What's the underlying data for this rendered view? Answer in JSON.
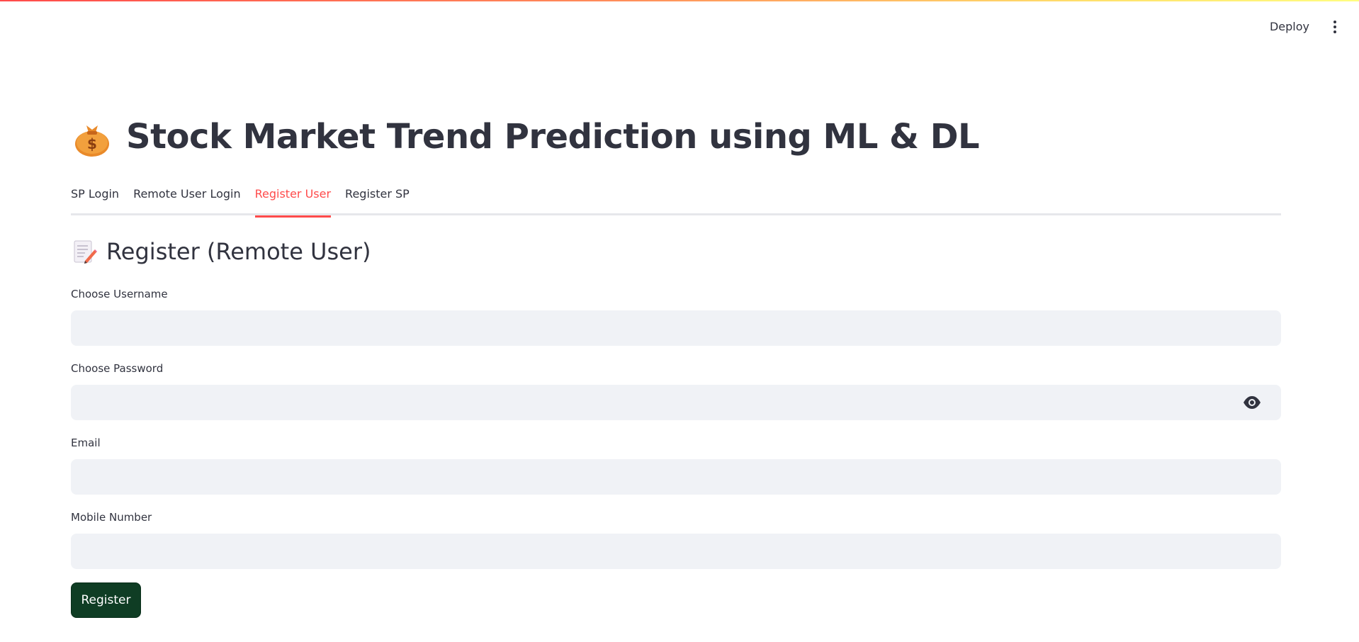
{
  "header": {
    "deploy_label": "Deploy"
  },
  "page": {
    "title": "Stock Market Trend Prediction using ML & DL",
    "title_icon": "money-bag-icon"
  },
  "tabs": [
    {
      "label": "SP Login",
      "active": false
    },
    {
      "label": "Remote User Login",
      "active": false
    },
    {
      "label": "Register User",
      "active": true
    },
    {
      "label": "Register SP",
      "active": false
    }
  ],
  "section": {
    "title": "Register (Remote User)",
    "icon": "memo-icon"
  },
  "form": {
    "username": {
      "label": "Choose Username",
      "value": ""
    },
    "password": {
      "label": "Choose Password",
      "value": ""
    },
    "email": {
      "label": "Email",
      "value": ""
    },
    "mobile": {
      "label": "Mobile Number",
      "value": ""
    },
    "submit_label": "Register"
  },
  "colors": {
    "accent": "#ff4b4b",
    "button_bg": "#0f3d24",
    "input_bg": "#f0f2f6",
    "text": "#31333f"
  }
}
